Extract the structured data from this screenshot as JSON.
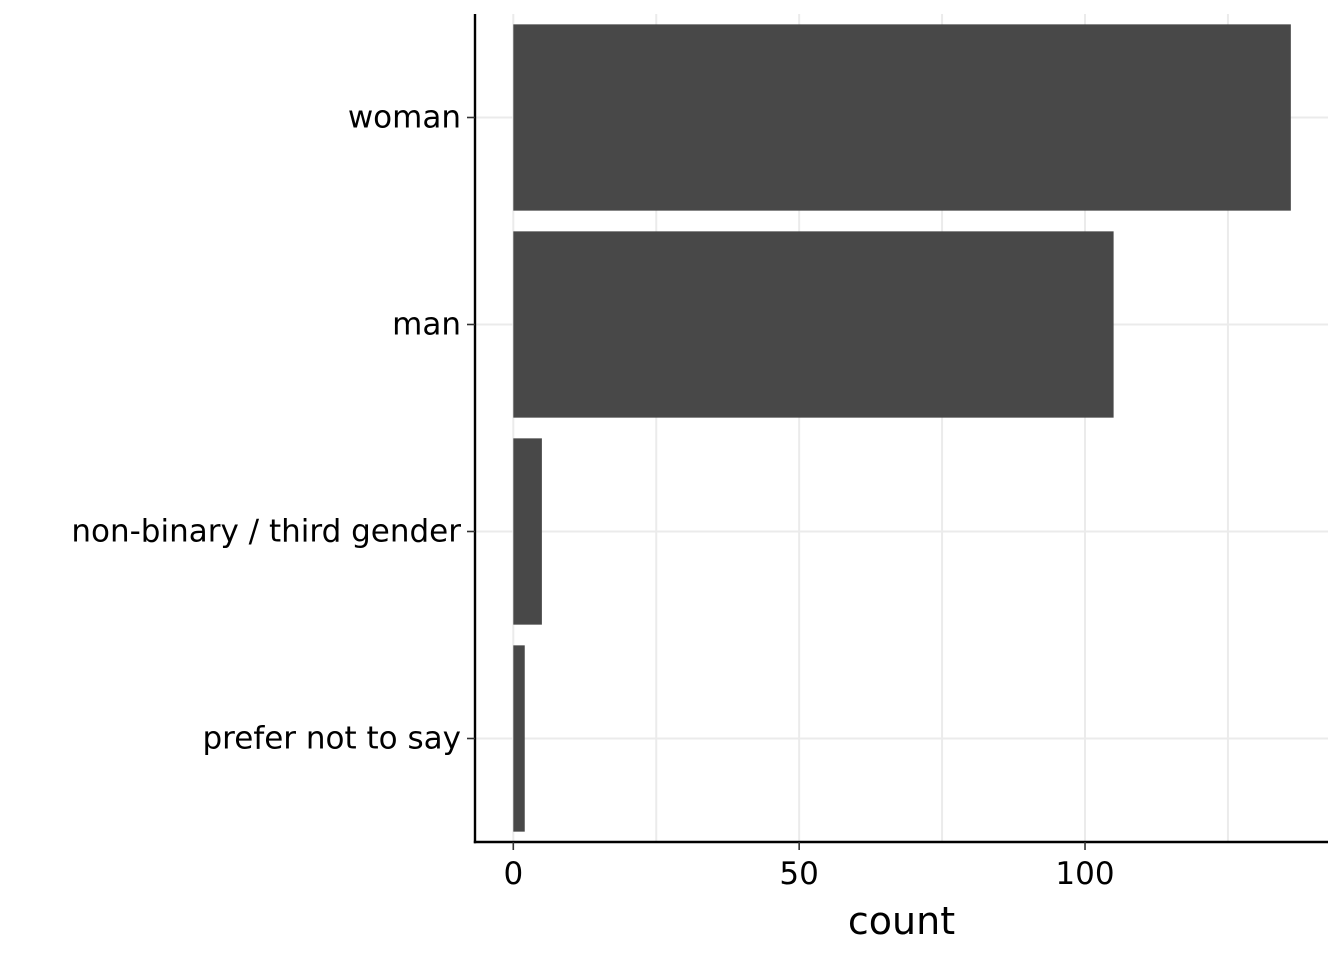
{
  "chart_data": {
    "type": "bar",
    "orientation": "horizontal",
    "categories": [
      "woman",
      "man",
      "non-binary / third gender",
      "prefer not to say"
    ],
    "values": [
      136,
      105,
      5,
      2
    ],
    "title": "",
    "xlabel": "count",
    "ylabel": "",
    "xlim": [
      -6.7,
      142.5
    ],
    "xticks": [
      0,
      50,
      100
    ],
    "minor_gridlines": [
      25,
      75,
      125
    ],
    "grid": true,
    "legend": "none",
    "colors": {
      "bar": "#484848",
      "grid": "#ebebeb",
      "axis": "#000000",
      "background": "#ffffff"
    }
  }
}
